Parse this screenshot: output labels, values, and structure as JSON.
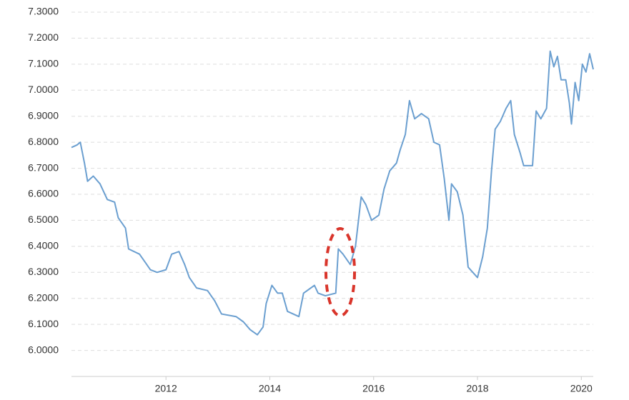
{
  "chart_data": {
    "type": "line",
    "x": [
      2010.18,
      2010.29,
      2010.35,
      2010.43,
      2010.49,
      2010.6,
      2010.73,
      2010.87,
      2011.01,
      2011.08,
      2011.22,
      2011.28,
      2011.49,
      2011.63,
      2011.7,
      2011.83,
      2012.0,
      2012.11,
      2012.25,
      2012.36,
      2012.45,
      2012.59,
      2012.8,
      2012.94,
      2013.07,
      2013.35,
      2013.49,
      2013.62,
      2013.76,
      2013.87,
      2013.93,
      2014.04,
      2014.15,
      2014.24,
      2014.34,
      2014.56,
      2014.65,
      2014.86,
      2014.93,
      2015.07,
      2015.27,
      2015.32,
      2015.41,
      2015.55,
      2015.65,
      2015.76,
      2015.85,
      2015.96,
      2016.1,
      2016.2,
      2016.31,
      2016.44,
      2016.51,
      2016.61,
      2016.69,
      2016.79,
      2016.92,
      2017.06,
      2017.16,
      2017.27,
      2017.36,
      2017.45,
      2017.5,
      2017.61,
      2017.72,
      2017.82,
      2017.91,
      2018.0,
      2018.1,
      2018.19,
      2018.27,
      2018.34,
      2018.44,
      2018.55,
      2018.64,
      2018.71,
      2018.82,
      2018.89,
      2019.06,
      2019.13,
      2019.22,
      2019.33,
      2019.4,
      2019.47,
      2019.54,
      2019.61,
      2019.7,
      2019.77,
      2019.81,
      2019.88,
      2019.95,
      2020.02,
      2020.09,
      2020.16,
      2020.23
    ],
    "series": [
      {
        "color": "#6b9fd0",
        "values": [
          6.78,
          6.79,
          6.8,
          6.72,
          6.65,
          6.67,
          6.64,
          6.58,
          6.57,
          6.51,
          6.47,
          6.39,
          6.37,
          6.33,
          6.31,
          6.3,
          6.31,
          6.37,
          6.38,
          6.33,
          6.28,
          6.24,
          6.23,
          6.19,
          6.14,
          6.13,
          6.11,
          6.08,
          6.06,
          6.09,
          6.18,
          6.25,
          6.22,
          6.22,
          6.15,
          6.13,
          6.22,
          6.25,
          6.22,
          6.21,
          6.22,
          6.39,
          6.37,
          6.33,
          6.4,
          6.59,
          6.56,
          6.5,
          6.52,
          6.62,
          6.69,
          6.72,
          6.77,
          6.83,
          6.96,
          6.89,
          6.91,
          6.89,
          6.8,
          6.79,
          6.66,
          6.5,
          6.64,
          6.61,
          6.52,
          6.32,
          6.3,
          6.28,
          6.36,
          6.47,
          6.69,
          6.85,
          6.88,
          6.93,
          6.96,
          6.83,
          6.76,
          6.71,
          6.71,
          6.92,
          6.89,
          6.93,
          7.15,
          7.09,
          7.13,
          7.04,
          7.04,
          6.95,
          6.87,
          7.03,
          6.96,
          7.1,
          7.07,
          7.14,
          7.08
        ]
      }
    ],
    "xlim": [
      2010.18,
      2020.23
    ],
    "xticks": [
      2012,
      2014,
      2016,
      2018,
      2020
    ],
    "ylim": [
      5.9,
      7.3
    ],
    "yticks": [
      {
        "value": 6.0,
        "label": "6.0000"
      },
      {
        "value": 6.1,
        "label": "6.1000"
      },
      {
        "value": 6.2,
        "label": "6.2000"
      },
      {
        "value": 6.3,
        "label": "6.3000"
      },
      {
        "value": 6.4,
        "label": "6.4000"
      },
      {
        "value": 6.5,
        "label": "6.5000"
      },
      {
        "value": 6.6,
        "label": "6.6000"
      },
      {
        "value": 6.7,
        "label": "6.7000"
      },
      {
        "value": 6.8,
        "label": "6.8000"
      },
      {
        "value": 6.9,
        "label": "6.9000"
      },
      {
        "value": 7.0,
        "label": "7.0000"
      },
      {
        "value": 7.1,
        "label": "7.1000"
      },
      {
        "value": 7.2,
        "label": "7.2000"
      },
      {
        "value": 7.3,
        "label": "7.3000"
      }
    ],
    "grid": true
  }
}
